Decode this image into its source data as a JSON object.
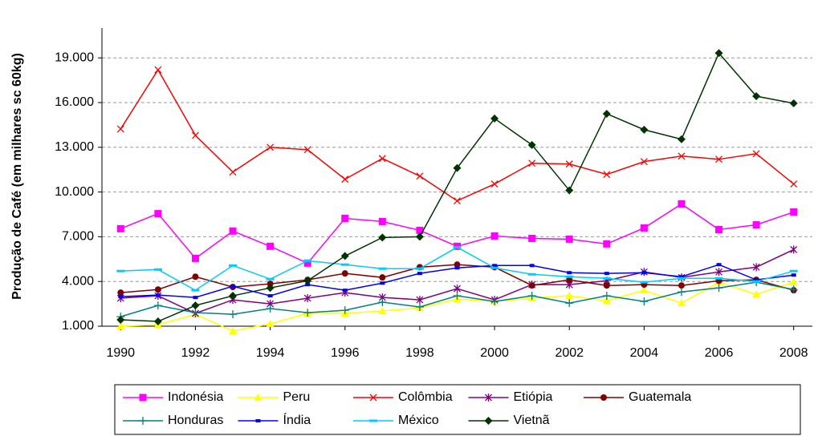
{
  "chart_data": {
    "type": "line",
    "y_label": "Produção de Café (em milhares sc 60kg)",
    "x": [
      1990,
      1991,
      1992,
      1993,
      1994,
      1995,
      1996,
      1997,
      1998,
      1999,
      2000,
      2001,
      2002,
      2003,
      2004,
      2005,
      2006,
      2007,
      2008
    ],
    "xlim": [
      1989.5,
      2008.5
    ],
    "xticks": [
      1990,
      1992,
      1994,
      1996,
      1998,
      2000,
      2002,
      2004,
      2006,
      2008
    ],
    "ylim": [
      1000,
      21000
    ],
    "yticks": [
      {
        "value": 1000,
        "label": "1.000"
      },
      {
        "value": 4000,
        "label": "4.000"
      },
      {
        "value": 7000,
        "label": "7.000"
      },
      {
        "value": 10000,
        "label": "10.000"
      },
      {
        "value": 13000,
        "label": "13.000"
      },
      {
        "value": 16000,
        "label": "16.000"
      },
      {
        "value": 19000,
        "label": "19.000"
      }
    ],
    "grid": true,
    "legend": "bottom",
    "series": [
      {
        "name": "Indonésia",
        "color": "#ff00ff",
        "marker": "square",
        "values": [
          7540,
          8550,
          5550,
          7380,
          6360,
          5230,
          8230,
          8020,
          7430,
          6360,
          7050,
          6890,
          6840,
          6520,
          7590,
          9200,
          7480,
          7800,
          8660
        ]
      },
      {
        "name": "Peru",
        "color": "#ffff00",
        "marker": "triangle",
        "values": [
          1000,
          1100,
          1800,
          680,
          1160,
          1860,
          1860,
          2020,
          2230,
          2820,
          2660,
          2880,
          3040,
          2710,
          3410,
          2550,
          3950,
          3140,
          3950
        ]
      },
      {
        "name": "Colômbia",
        "color": "#ff0000",
        "marker": "x",
        "values": [
          14230,
          18200,
          13800,
          11340,
          13000,
          12840,
          10860,
          12250,
          11070,
          9410,
          10540,
          11930,
          11880,
          11180,
          12040,
          12410,
          12200,
          12570,
          10540
        ]
      },
      {
        "name": "Etiópia",
        "color": "#800080",
        "marker": "star",
        "values": [
          2880,
          3040,
          1860,
          2770,
          2500,
          2880,
          3250,
          2930,
          2770,
          3520,
          2770,
          3790,
          3790,
          4050,
          4640,
          4270,
          4640,
          4960,
          6140
        ]
      },
      {
        "name": "Guatemala",
        "color": "#800000",
        "marker": "circle",
        "values": [
          3250,
          3460,
          4320,
          3630,
          3840,
          4110,
          4540,
          4270,
          4960,
          5130,
          4960,
          3730,
          4110,
          3730,
          3790,
          3730,
          4050,
          4110,
          3410
        ]
      },
      {
        "name": "Honduras",
        "color": "#008080",
        "marker": "plus",
        "values": [
          1640,
          2390,
          1910,
          1800,
          2180,
          1910,
          2070,
          2610,
          2290,
          3040,
          2660,
          3040,
          2550,
          3040,
          2660,
          3300,
          3570,
          3950,
          3460
        ]
      },
      {
        "name": "Índia",
        "color": "#0000ff",
        "marker": "smallsquare",
        "values": [
          2980,
          3090,
          2930,
          3680,
          3040,
          3790,
          3410,
          3890,
          4540,
          4910,
          5070,
          5070,
          4590,
          4540,
          4590,
          4320,
          5130,
          4110,
          4430
        ]
      },
      {
        "name": "México",
        "color": "#00ccff",
        "marker": "dash",
        "values": [
          4700,
          4800,
          3410,
          5070,
          4160,
          5390,
          5130,
          4860,
          4860,
          6300,
          4910,
          4480,
          4320,
          4210,
          3950,
          4210,
          4210,
          4000,
          4700
        ]
      },
      {
        "name": "Vietnã",
        "color": "#003300",
        "marker": "diamond",
        "values": [
          1430,
          1320,
          2390,
          3040,
          3570,
          4050,
          5710,
          6950,
          7000,
          11610,
          14930,
          13160,
          10110,
          15250,
          14180,
          13540,
          19320,
          16430,
          15950
        ]
      }
    ]
  }
}
